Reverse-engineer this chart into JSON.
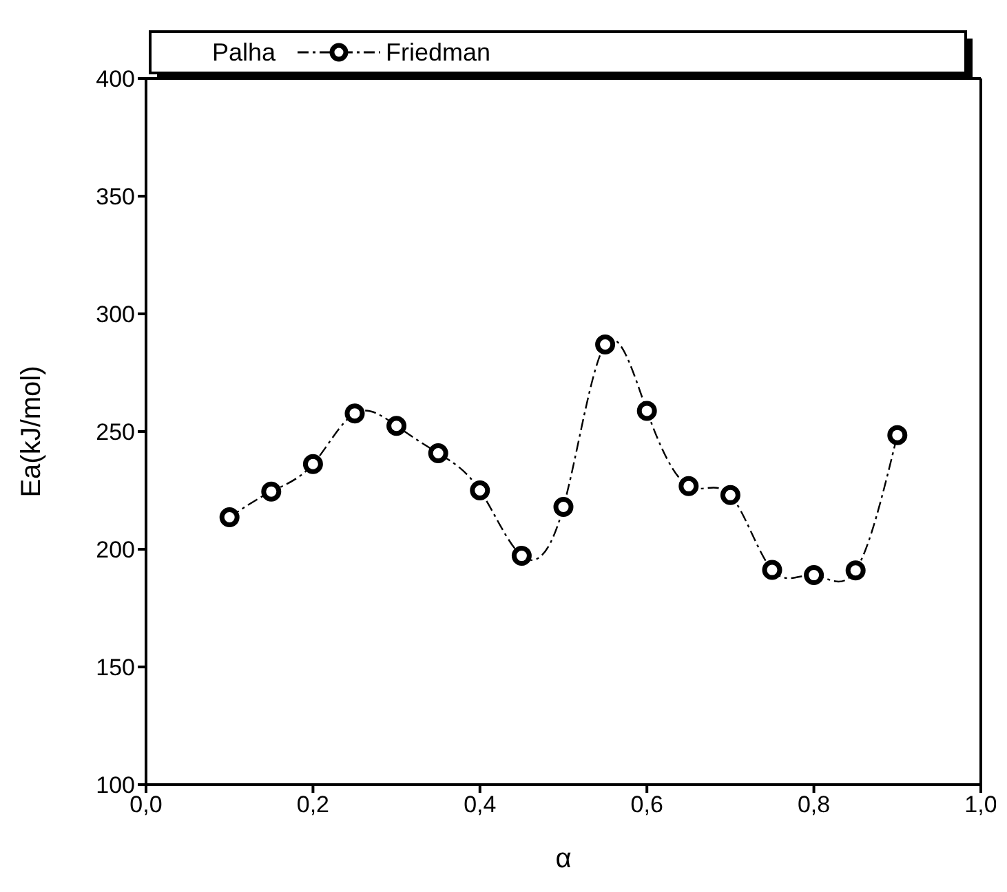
{
  "chart_data": {
    "type": "line",
    "xlabel": "α",
    "ylabel": "Ea(kJ/mol)",
    "legend_title": "Palha",
    "x": [
      0.1,
      0.15,
      0.2,
      0.25,
      0.3,
      0.35,
      0.4,
      0.45,
      0.5,
      0.55,
      0.6,
      0.65,
      0.7,
      0.75,
      0.8,
      0.85,
      0.9
    ],
    "series": [
      {
        "name": "Friedman",
        "color": "#000000",
        "values": [
          213.6,
          224.5,
          236.2,
          257.7,
          252.4,
          240.8,
          225,
          197.2,
          218,
          287,
          258.8,
          226.8,
          223,
          191.2,
          189,
          191,
          248.5
        ]
      }
    ],
    "xlim": [
      0,
      1
    ],
    "xticks": [
      {
        "value": 0,
        "label": "0,0"
      },
      {
        "value": 0.2,
        "label": "0,2"
      },
      {
        "value": 0.4,
        "label": "0,4"
      },
      {
        "value": 0.6,
        "label": "0,6"
      },
      {
        "value": 0.8,
        "label": "0,8"
      },
      {
        "value": 1,
        "label": "1,0"
      }
    ],
    "ylim": [
      100,
      400
    ],
    "yticks": [
      100,
      150,
      200,
      250,
      300,
      350,
      400
    ],
    "grid": false,
    "legend": "top",
    "marker": "circle",
    "line_style": "dashed"
  }
}
